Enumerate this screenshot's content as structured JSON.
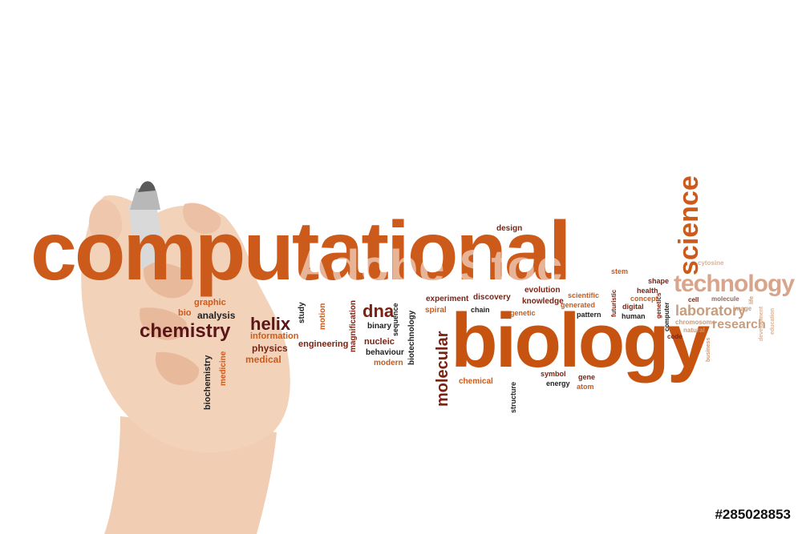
{
  "colors": {
    "orange": "#cc5a1a",
    "dark_orange": "#b34e12",
    "brown": "#7b2313",
    "maroon": "#5a1518",
    "tan": "#c79d7e",
    "light_tan": "#d6b39a",
    "gray_brown": "#8b6d63"
  },
  "words": {
    "computational": "computational",
    "biology": "biology",
    "science": "science",
    "technology": "technology",
    "chemistry": "chemistry",
    "helix": "helix",
    "dna": "dna",
    "molecular": "molecular",
    "laboratory": "laboratory",
    "research": "research",
    "design": "design",
    "stem": "stem",
    "shape": "shape",
    "cytosine": "cytosine",
    "graphic": "graphic",
    "analysis": "analysis",
    "bio": "bio",
    "study": "study",
    "motion": "motion",
    "magnification": "magnification",
    "sequence": "sequence",
    "binary": "binary",
    "nucleic": "nucleic",
    "behaviour": "behaviour",
    "modern": "modern",
    "biotechnology": "biotechnology",
    "experiment": "experiment",
    "discovery": "discovery",
    "spiral": "spiral",
    "chain": "chain",
    "evolution": "evolution",
    "knowledge": "knowledge",
    "genetic": "genetic",
    "generated": "generated",
    "scientific": "scientific",
    "pattern": "pattern",
    "futuristic": "futuristic",
    "health": "health",
    "concept": "concept",
    "digital": "digital",
    "human": "human",
    "genetics": "genetics",
    "computer": "computer",
    "cell": "cell",
    "molecule": "molecule",
    "chromosome": "chromosome",
    "natural": "natural",
    "code": "code",
    "image": "image",
    "life": "life",
    "development": "development",
    "education": "education",
    "business": "business",
    "information": "information",
    "physics": "physics",
    "engineering": "engineering",
    "medical": "medical",
    "biochemistry": "biochemistry",
    "medicine": "medicine",
    "chemical": "chemical",
    "structure": "structure",
    "symbol": "symbol",
    "energy": "energy",
    "gene": "gene",
    "atom": "atom"
  },
  "watermark": "Adobe Stock",
  "stock_id": "#285028853"
}
